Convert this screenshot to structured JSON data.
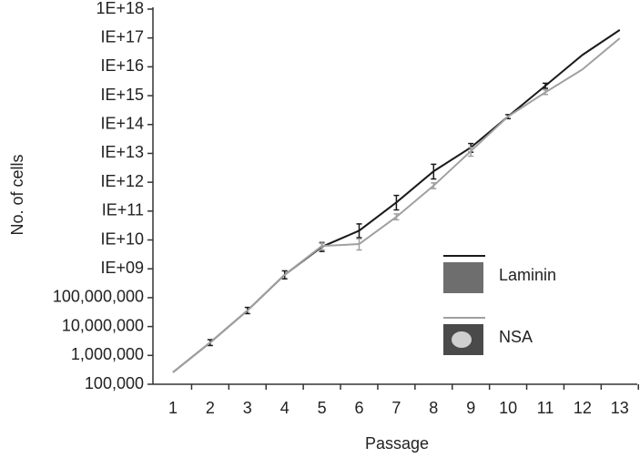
{
  "chart_data": {
    "type": "line",
    "x_label": "Passage",
    "y_label": "No. of cells",
    "categories": [
      "1",
      "2",
      "3",
      "4",
      "5",
      "6",
      "7",
      "8",
      "9",
      "10",
      "11",
      "12",
      "13"
    ],
    "log_scale": true,
    "ylim": [
      100000,
      1e+18
    ],
    "yticks": [
      {
        "value": 100000,
        "label": "100,000"
      },
      {
        "value": 1000000,
        "label": "1,000,000"
      },
      {
        "value": 10000000,
        "label": "10,000,000"
      },
      {
        "value": 100000000,
        "label": "100,000,000"
      },
      {
        "value": 1000000000,
        "label": "IE+09"
      },
      {
        "value": 10000000000,
        "label": "IE+10"
      },
      {
        "value": 100000000000,
        "label": "IE+11"
      },
      {
        "value": 1000000000000,
        "label": "IE+12"
      },
      {
        "value": 10000000000000,
        "label": "IE+13"
      },
      {
        "value": 100000000000000,
        "label": "IE+14"
      },
      {
        "value": 1000000000000000,
        "label": "IE+15"
      },
      {
        "value": 10000000000000000,
        "label": "IE+16"
      },
      {
        "value": 100000000000000000,
        "label": "IE+17"
      },
      {
        "value": 1000000000000000000,
        "label": "1E+18"
      }
    ],
    "series": [
      {
        "name": "Laminin",
        "color": "#1a1a1a",
        "values": [
          260000,
          2800000,
          36000000,
          620000000,
          5800000000,
          21000000000,
          200000000000,
          2400000000000,
          16000000000000,
          190000000000000,
          2200000000000000,
          26000000000000000,
          190000000000000000
        ],
        "error_bars": [
          null,
          [
            2200000,
            3500000
          ],
          [
            28000000,
            46000000
          ],
          [
            450000000,
            850000000
          ],
          [
            4000000000,
            8000000000
          ],
          [
            12000000000,
            36000000000
          ],
          [
            110000000000,
            350000000000
          ],
          [
            1300000000000,
            4200000000000
          ],
          [
            11000000000000,
            22000000000000
          ],
          [
            160000000000000,
            220000000000000
          ],
          [
            1800000000000000,
            2700000000000000
          ],
          null,
          null
        ]
      },
      {
        "name": "NSA",
        "color": "#a0a0a0",
        "values": [
          260000,
          2800000,
          36000000,
          620000000,
          6200000000,
          7200000000,
          63000000000,
          760000000000,
          12000000000000,
          190000000000000,
          1300000000000000,
          8200000000000000,
          98000000000000000
        ],
        "error_bars": [
          null,
          null,
          null,
          null,
          [
            4500000000,
            8500000000
          ],
          [
            4500000000,
            11000000000
          ],
          [
            50000000000,
            80000000000
          ],
          [
            600000000000,
            950000000000
          ],
          [
            8000000000000,
            16000000000000
          ],
          null,
          [
            1100000000000000,
            1600000000000000
          ],
          null,
          null
        ]
      }
    ]
  }
}
